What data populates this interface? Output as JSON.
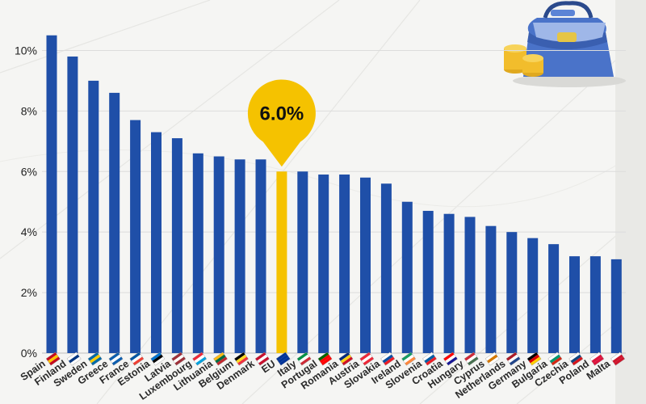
{
  "chart_data": {
    "type": "bar",
    "categories": [
      "Spain",
      "Finland",
      "Sweden",
      "Greece",
      "France",
      "Estonia",
      "Latvia",
      "Luxembourg",
      "Lithuania",
      "Belgium",
      "Denmark",
      "EU",
      "Italy",
      "Portugal",
      "Romania",
      "Austria",
      "Slovakia",
      "Ireland",
      "Slovenia",
      "Croatia",
      "Hungary",
      "Cyprus",
      "Netherlands",
      "Germany",
      "Bulgaria",
      "Czechia",
      "Poland",
      "Malta"
    ],
    "values": [
      10.5,
      9.8,
      9.0,
      8.6,
      7.7,
      7.3,
      7.1,
      6.6,
      6.5,
      6.4,
      6.4,
      6.0,
      6.0,
      5.9,
      5.9,
      5.8,
      5.6,
      5.0,
      4.7,
      4.6,
      4.5,
      4.2,
      4.0,
      3.8,
      3.6,
      3.2,
      3.2,
      3.1
    ],
    "highlight": "EU",
    "callout": "6.0%",
    "ylim": [
      0,
      11
    ],
    "y_ticks": [
      "0%",
      "2%",
      "4%",
      "6%",
      "8%",
      "10%"
    ],
    "y_tick_values": [
      0,
      2,
      4,
      6,
      8,
      10
    ],
    "grid": true,
    "colors": {
      "bar": "#1f4fa8",
      "highlight": "#f5c200",
      "callout": "#f5c200"
    }
  },
  "flags": [
    "spain-flag-icon",
    "finland-flag-icon",
    "sweden-flag-icon",
    "greece-flag-icon",
    "france-flag-icon",
    "estonia-flag-icon",
    "latvia-flag-icon",
    "luxembourg-flag-icon",
    "lithuania-flag-icon",
    "belgium-flag-icon",
    "denmark-flag-icon",
    "eu-flag-icon",
    "italy-flag-icon",
    "portugal-flag-icon",
    "romania-flag-icon",
    "austria-flag-icon",
    "slovakia-flag-icon",
    "ireland-flag-icon",
    "slovenia-flag-icon",
    "croatia-flag-icon",
    "hungary-flag-icon",
    "cyprus-flag-icon",
    "netherlands-flag-icon",
    "germany-flag-icon",
    "bulgaria-flag-icon",
    "czechia-flag-icon",
    "poland-flag-icon",
    "malta-flag-icon"
  ],
  "illustration": "money-bag-with-coins-icon"
}
